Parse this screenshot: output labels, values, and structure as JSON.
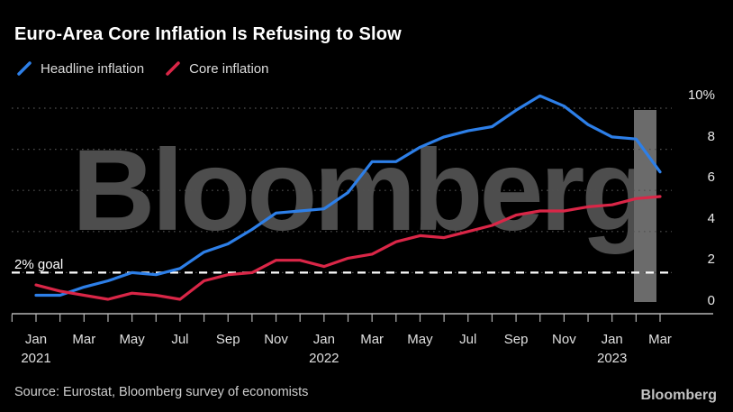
{
  "title": "Euro-Area Core Inflation Is Refusing to Slow",
  "goal_annotation": "2% goal",
  "source": "Source: Eurostat, Bloomberg survey of economists",
  "brand": "Bloomberg",
  "watermark": "Bloomberg",
  "colors": {
    "background": "#000000",
    "title": "#ffffff",
    "headline_line": "#2d7fe8",
    "core_line": "#da2647",
    "grid_dotted": "#4f4f4f",
    "axis": "#b5b5b5",
    "goal_line": "#ffffff",
    "watermark": "#4d4d4d"
  },
  "chart_data": {
    "type": "line",
    "title": "Euro-Area Core Inflation Is Refusing to Slow",
    "x": [
      "Jan 2021",
      "Feb 2021",
      "Mar 2021",
      "Apr 2021",
      "May 2021",
      "Jun 2021",
      "Jul 2021",
      "Aug 2021",
      "Sep 2021",
      "Oct 2021",
      "Nov 2021",
      "Dec 2021",
      "Jan 2022",
      "Feb 2022",
      "Mar 2022",
      "Apr 2022",
      "May 2022",
      "Jun 2022",
      "Jul 2022",
      "Aug 2022",
      "Sep 2022",
      "Oct 2022",
      "Nov 2022",
      "Dec 2022",
      "Jan 2023",
      "Feb 2023",
      "Mar 2023"
    ],
    "series": [
      {
        "name": "Headline inflation",
        "color": "#2d7fe8",
        "values": [
          0.9,
          0.9,
          1.3,
          1.6,
          2.0,
          1.9,
          2.2,
          3.0,
          3.4,
          4.1,
          4.9,
          5.0,
          5.1,
          5.9,
          7.4,
          7.4,
          8.1,
          8.6,
          8.9,
          9.1,
          9.9,
          10.6,
          10.1,
          9.2,
          8.6,
          8.5,
          6.9
        ]
      },
      {
        "name": "Core inflation",
        "color": "#da2647",
        "values": [
          1.4,
          1.1,
          0.9,
          0.7,
          1.0,
          0.9,
          0.7,
          1.6,
          1.9,
          2.0,
          2.6,
          2.6,
          2.3,
          2.7,
          2.9,
          3.5,
          3.8,
          3.7,
          4.0,
          4.3,
          4.8,
          5.0,
          5.0,
          5.2,
          5.3,
          5.6,
          5.7
        ]
      }
    ],
    "ylabel": "",
    "xlabel": "",
    "ylim": [
      0,
      10.6
    ],
    "grid": "horizontal-dotted",
    "legend_position": "top-left",
    "y_ticks": [
      {
        "label": "10%",
        "value": 10
      },
      {
        "label": "8",
        "value": 8
      },
      {
        "label": "6",
        "value": 6
      },
      {
        "label": "4",
        "value": 4
      },
      {
        "label": "2",
        "value": 2
      },
      {
        "label": "0",
        "value": 0
      }
    ],
    "x_ticks": [
      {
        "label": "Jan",
        "year": "2021",
        "month": 0
      },
      {
        "label": "Mar",
        "month": 2
      },
      {
        "label": "May",
        "month": 4
      },
      {
        "label": "Jul",
        "month": 6
      },
      {
        "label": "Sep",
        "month": 8
      },
      {
        "label": "Nov",
        "month": 10
      },
      {
        "label": "Jan",
        "year": "2022",
        "month": 12
      },
      {
        "label": "Mar",
        "month": 14
      },
      {
        "label": "May",
        "month": 16
      },
      {
        "label": "Jul",
        "month": 18
      },
      {
        "label": "Sep",
        "month": 20
      },
      {
        "label": "Nov",
        "month": 22
      },
      {
        "label": "Jan",
        "year": "2023",
        "month": 24
      },
      {
        "label": "Mar",
        "month": 26
      }
    ],
    "annotation": {
      "label": "2% goal",
      "value": 2,
      "style": "white-dashed"
    }
  }
}
